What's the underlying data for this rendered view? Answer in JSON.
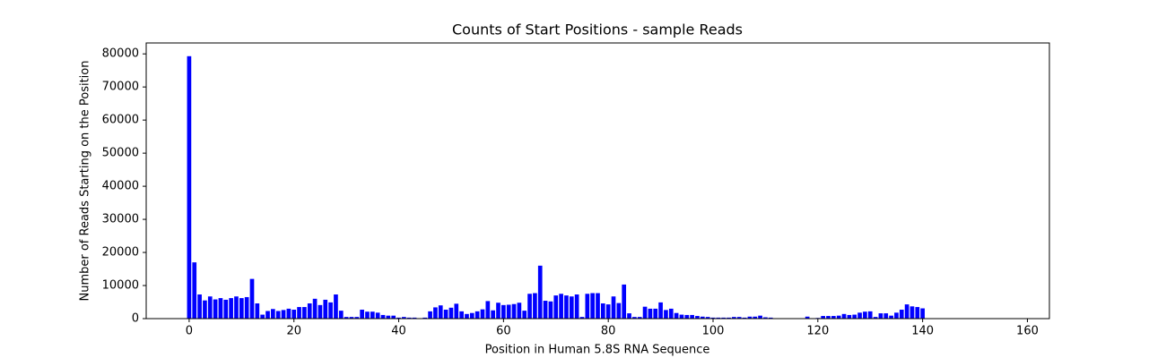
{
  "chart_data": {
    "type": "bar",
    "title": "Counts of Start Positions - sample Reads",
    "xlabel": "Position in Human 5.8S RNA Sequence",
    "ylabel": "Number of Reads Starting on the Position",
    "color": "#0000ff",
    "x": [
      0,
      1,
      2,
      3,
      4,
      5,
      6,
      7,
      8,
      9,
      10,
      11,
      12,
      13,
      14,
      15,
      16,
      17,
      18,
      19,
      20,
      21,
      22,
      23,
      24,
      25,
      26,
      27,
      28,
      29,
      30,
      31,
      32,
      33,
      34,
      35,
      36,
      37,
      38,
      39,
      40,
      41,
      42,
      43,
      44,
      45,
      46,
      47,
      48,
      49,
      50,
      51,
      52,
      53,
      54,
      55,
      56,
      57,
      58,
      59,
      60,
      61,
      62,
      63,
      64,
      65,
      66,
      67,
      68,
      69,
      70,
      71,
      72,
      73,
      74,
      75,
      76,
      77,
      78,
      79,
      80,
      81,
      82,
      83,
      84,
      85,
      86,
      87,
      88,
      89,
      90,
      91,
      92,
      93,
      94,
      95,
      96,
      97,
      98,
      99,
      100,
      101,
      102,
      103,
      104,
      105,
      106,
      107,
      108,
      109,
      110,
      111,
      112,
      113,
      114,
      115,
      116,
      117,
      118,
      119,
      120,
      121,
      122,
      123,
      124,
      125,
      126,
      127,
      128,
      129,
      130,
      131,
      132,
      133,
      134,
      135,
      136,
      137,
      138,
      139,
      140,
      141,
      142,
      143,
      144,
      145,
      146,
      147,
      148,
      149,
      150,
      151,
      152,
      153,
      154,
      155,
      156
    ],
    "values": [
      79300,
      17000,
      7300,
      5500,
      6700,
      5800,
      6200,
      5700,
      6200,
      6700,
      6200,
      6500,
      12000,
      4600,
      1200,
      2300,
      2900,
      2300,
      2600,
      3000,
      2700,
      3500,
      3500,
      4600,
      6000,
      4100,
      5700,
      4900,
      7300,
      2400,
      500,
      500,
      500,
      2700,
      2100,
      2100,
      1800,
      1100,
      900,
      900,
      300,
      500,
      300,
      300,
      0,
      300,
      2200,
      3400,
      4000,
      2700,
      3300,
      4500,
      2200,
      1400,
      1700,
      2200,
      2800,
      5300,
      2500,
      4800,
      4100,
      4200,
      4400,
      4800,
      2400,
      7500,
      7700,
      16000,
      5400,
      5200,
      7000,
      7500,
      7000,
      6700,
      7300,
      500,
      7500,
      7700,
      7700,
      4600,
      4300,
      6700,
      4700,
      10300,
      1600,
      500,
      500,
      3600,
      3000,
      3000,
      4900,
      2600,
      3000,
      1700,
      1200,
      1100,
      1100,
      800,
      600,
      500,
      300,
      300,
      300,
      300,
      500,
      500,
      300,
      600,
      600,
      900,
      400,
      300,
      0,
      0,
      0,
      0,
      0,
      0,
      600,
      0,
      200,
      800,
      800,
      800,
      900,
      1400,
      1100,
      1200,
      1800,
      2100,
      2200,
      500,
      1600,
      1600,
      900,
      1800,
      2700,
      4300,
      3700,
      3500,
      3100,
      0,
      0,
      0,
      0,
      0,
      0,
      0,
      0,
      0,
      0,
      0,
      0,
      0,
      0,
      0,
      0
    ],
    "bar_width": 0.8,
    "xlim": [
      -8.2,
      164.2
    ],
    "xticks": [
      0,
      20,
      40,
      60,
      80,
      100,
      120,
      140,
      160
    ],
    "ylim": [
      0,
      83300
    ],
    "yticks": [
      0,
      10000,
      20000,
      30000,
      40000,
      50000,
      60000,
      70000,
      80000
    ],
    "grid": false
  }
}
